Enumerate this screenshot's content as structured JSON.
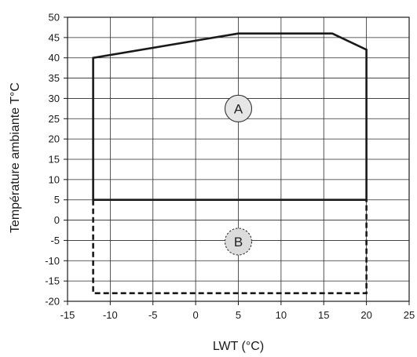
{
  "chart_data": {
    "type": "line",
    "title": "",
    "xlabel": "LWT (°C)",
    "ylabel": "Température ambiante T°C",
    "xlim": [
      -15,
      25
    ],
    "ylim": [
      -20,
      50
    ],
    "x_ticks": [
      -15,
      -10,
      -5,
      0,
      5,
      10,
      15,
      20,
      25
    ],
    "y_ticks": [
      50,
      45,
      40,
      35,
      30,
      25,
      20,
      15,
      10,
      5,
      0,
      -5,
      -10,
      -15,
      -20
    ],
    "grid": true,
    "series": [
      {
        "name": "A",
        "style": "solid",
        "color": "#1a1a1a",
        "x": [
          -12,
          -12,
          5,
          16,
          20,
          20,
          -12
        ],
        "y": [
          5,
          40,
          46,
          46,
          42,
          5,
          5
        ]
      },
      {
        "name": "B",
        "style": "dashed",
        "color": "#1a1a1a",
        "x": [
          -12,
          -12,
          20,
          20
        ],
        "y": [
          5,
          -18,
          -18,
          5
        ]
      }
    ],
    "annotations": [
      {
        "text": "A",
        "x": 5,
        "y": 27.5,
        "fill": "#e6e6e6",
        "border": "solid"
      },
      {
        "text": "B",
        "x": 5,
        "y": -5.3,
        "fill": "#dcdcdc",
        "border": "dashed"
      }
    ]
  }
}
